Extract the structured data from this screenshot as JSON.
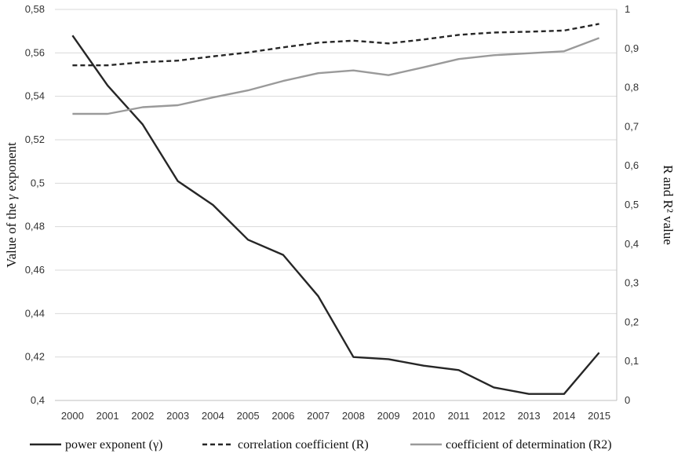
{
  "chart_data": {
    "type": "line",
    "x": [
      "2000",
      "2001",
      "2002",
      "2003",
      "2004",
      "2005",
      "2006",
      "2007",
      "2008",
      "2009",
      "2010",
      "2011",
      "2012",
      "2013",
      "2014",
      "2015"
    ],
    "y_left": {
      "label_prefix": "Value of the ",
      "label_symbol": "γ",
      "label_suffix": " exponent",
      "ylim": [
        0.4,
        0.58
      ],
      "ticks": [
        "0,4",
        "0,42",
        "0,44",
        "0,46",
        "0,48",
        "0,5",
        "0,52",
        "0,54",
        "0,56",
        "0,58"
      ],
      "tick_values": [
        0.4,
        0.42,
        0.44,
        0.46,
        0.48,
        0.5,
        0.52,
        0.54,
        0.56,
        0.58
      ]
    },
    "y_right": {
      "label": "R and R² value",
      "ylim": [
        0,
        1
      ],
      "ticks": [
        "0",
        "0,1",
        "0,2",
        "0,3",
        "0,4",
        "0,5",
        "0,6",
        "0,7",
        "0,8",
        "0,9",
        "1"
      ],
      "tick_values": [
        0,
        0.1,
        0.2,
        0.3,
        0.4,
        0.5,
        0.6,
        0.7,
        0.8,
        0.9,
        1
      ]
    },
    "grid": true,
    "legend_position": "bottom",
    "series": [
      {
        "name": "power exponent (γ)",
        "axis": "left",
        "color": "#262626",
        "dash": "solid",
        "values": [
          0.568,
          0.545,
          0.527,
          0.501,
          0.49,
          0.474,
          0.467,
          0.448,
          0.42,
          0.419,
          0.416,
          0.414,
          0.406,
          0.403,
          0.403,
          0.422
        ]
      },
      {
        "name": "correlation coefficient (R)",
        "axis": "right",
        "color": "#262626",
        "dash": "dashed",
        "values": [
          0.857,
          0.857,
          0.865,
          0.869,
          0.88,
          0.89,
          0.903,
          0.915,
          0.92,
          0.913,
          0.923,
          0.935,
          0.941,
          0.943,
          0.946,
          0.963
        ]
      },
      {
        "name": "coefficient of determination (R2)",
        "axis": "right",
        "color": "#9a9a9a",
        "dash": "solid",
        "values": [
          0.733,
          0.733,
          0.75,
          0.755,
          0.775,
          0.793,
          0.817,
          0.837,
          0.844,
          0.832,
          0.852,
          0.873,
          0.883,
          0.888,
          0.893,
          0.927
        ]
      }
    ]
  }
}
